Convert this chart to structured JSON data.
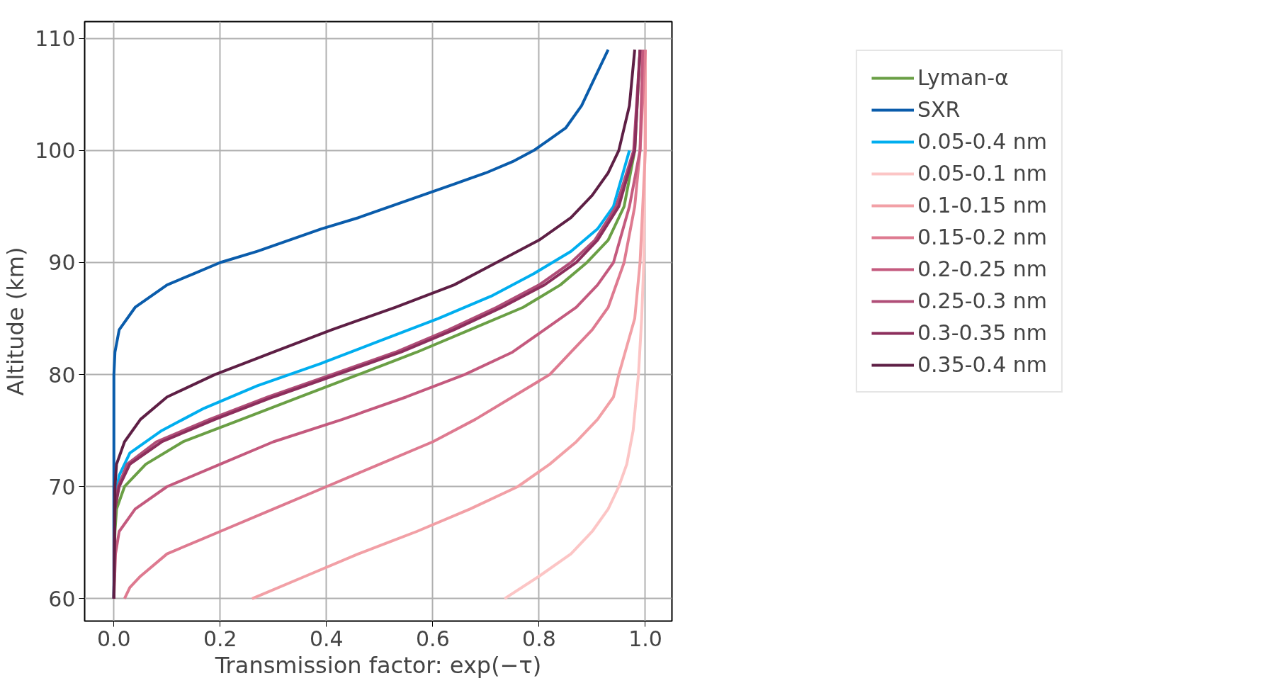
{
  "chart_data": {
    "type": "line",
    "xlabel": "Transmission factor: exp(−τ)",
    "ylabel": "Altitude (km)",
    "xlim": [
      -0.055,
      1.05
    ],
    "ylim": [
      58.0,
      111.5
    ],
    "xticks": [
      {
        "value": 0,
        "label": "0.0"
      },
      0.2,
      0.4,
      0.6,
      0.8,
      {
        "value": 1,
        "label": "1.0"
      }
    ],
    "yticks": [
      60,
      70,
      80,
      90,
      100,
      110
    ],
    "grid": true,
    "legend": "right",
    "line_style": "solid",
    "marker": "none",
    "series": [
      {
        "name": "Lyman-α",
        "color": "#6a9f45",
        "x": [
          0,
          0.002,
          0.005,
          0.02,
          0.06,
          0.13,
          0.24,
          0.35,
          0.46,
          0.57,
          0.67,
          0.77,
          0.84,
          0.89,
          0.93,
          0.96,
          0.98,
          0.99
        ],
        "values": [
          60,
          66,
          68,
          70,
          72,
          74,
          76,
          78,
          80,
          82,
          84,
          86,
          88,
          90,
          92,
          95,
          100,
          109
        ]
      },
      {
        "name": "SXR",
        "color": "#0a5cab",
        "x": [
          0,
          0,
          0.002,
          0.01,
          0.04,
          0.1,
          0.15,
          0.2,
          0.27,
          0.33,
          0.39,
          0.46,
          0.52,
          0.58,
          0.64,
          0.7,
          0.75,
          0.79,
          0.82,
          0.85,
          0.88,
          0.9,
          0.92,
          0.93
        ],
        "values": [
          60,
          80,
          82,
          84,
          86,
          88,
          89,
          90,
          91,
          92,
          93,
          94,
          95,
          96,
          97,
          98,
          99,
          100,
          101,
          102,
          104,
          106,
          108,
          109
        ]
      },
      {
        "name": "0.05-0.4 nm",
        "color": "#00aeef",
        "x": [
          0,
          0.002,
          0.01,
          0.03,
          0.09,
          0.17,
          0.27,
          0.39,
          0.5,
          0.61,
          0.71,
          0.79,
          0.86,
          0.91,
          0.94,
          0.97
        ],
        "values": [
          60,
          69,
          71,
          73,
          75,
          77,
          79,
          81,
          83,
          85,
          87,
          89,
          91,
          93,
          95,
          100
        ]
      },
      {
        "name": "0.05-0.1 nm",
        "color": "#fcc5c5",
        "x": [
          0.735,
          0.8,
          0.86,
          0.9,
          0.93,
          0.95,
          0.965,
          0.977,
          0.987,
          0.993,
          0.997,
          0.999,
          1.0
        ],
        "values": [
          60,
          62,
          64,
          66,
          68,
          70,
          72,
          75,
          80,
          85,
          90,
          100,
          109
        ]
      },
      {
        "name": "0.1-0.15 nm",
        "color": "#f2a0a6",
        "x": [
          0.26,
          0.36,
          0.46,
          0.57,
          0.67,
          0.76,
          0.82,
          0.87,
          0.91,
          0.94,
          0.95,
          0.98,
          0.99,
          1.0,
          1.0
        ],
        "values": [
          60,
          62,
          64,
          66,
          68,
          70,
          72,
          74,
          76,
          78,
          80,
          85,
          90,
          100,
          109
        ]
      },
      {
        "name": "0.15-0.2 nm",
        "color": "#de7a90",
        "x": [
          0.02,
          0.03,
          0.05,
          0.1,
          0.2,
          0.3,
          0.4,
          0.5,
          0.6,
          0.68,
          0.75,
          0.82,
          0.86,
          0.9,
          0.93,
          0.96,
          0.98,
          0.99,
          1.0
        ],
        "values": [
          60,
          61,
          62,
          64,
          66,
          68,
          70,
          72,
          74,
          76,
          78,
          80,
          82,
          84,
          86,
          90,
          95,
          100,
          109
        ]
      },
      {
        "name": "0.2-0.25 nm",
        "color": "#c45a7e",
        "x": [
          0,
          0.003,
          0.01,
          0.04,
          0.1,
          0.2,
          0.3,
          0.43,
          0.55,
          0.66,
          0.75,
          0.81,
          0.87,
          0.91,
          0.94,
          0.97,
          0.99,
          0.995
        ],
        "values": [
          60,
          64,
          66,
          68,
          70,
          72,
          74,
          76,
          78,
          80,
          82,
          84,
          86,
          88,
          90,
          95,
          100,
          109
        ]
      },
      {
        "name": "0.25-0.3 nm",
        "color": "#b04e78",
        "x": [
          0,
          0.002,
          0.008,
          0.025,
          0.08,
          0.18,
          0.29,
          0.41,
          0.53,
          0.63,
          0.72,
          0.8,
          0.86,
          0.905,
          0.945,
          0.978,
          0.99
        ],
        "values": [
          60,
          68,
          70,
          72,
          74,
          76,
          78,
          80,
          82,
          84,
          86,
          88,
          90,
          92,
          95,
          100,
          109
        ]
      },
      {
        "name": "0.3-0.35 nm",
        "color": "#8c2e5c",
        "x": [
          0,
          0.002,
          0.01,
          0.03,
          0.09,
          0.19,
          0.3,
          0.42,
          0.54,
          0.64,
          0.73,
          0.81,
          0.87,
          0.91,
          0.95,
          0.98,
          0.99
        ],
        "values": [
          60,
          68,
          70,
          72,
          74,
          76,
          78,
          80,
          82,
          84,
          86,
          88,
          90,
          92,
          95,
          100,
          109
        ]
      },
      {
        "name": "0.35-0.4 nm",
        "color": "#5e1f45",
        "x": [
          0,
          0.002,
          0.005,
          0.02,
          0.05,
          0.1,
          0.19,
          0.3,
          0.41,
          0.53,
          0.64,
          0.72,
          0.8,
          0.86,
          0.9,
          0.93,
          0.95,
          0.97,
          0.98
        ],
        "values": [
          60,
          70,
          72,
          74,
          76,
          78,
          80,
          82,
          84,
          86,
          88,
          90,
          92,
          94,
          96,
          98,
          100,
          104,
          109
        ]
      }
    ]
  }
}
